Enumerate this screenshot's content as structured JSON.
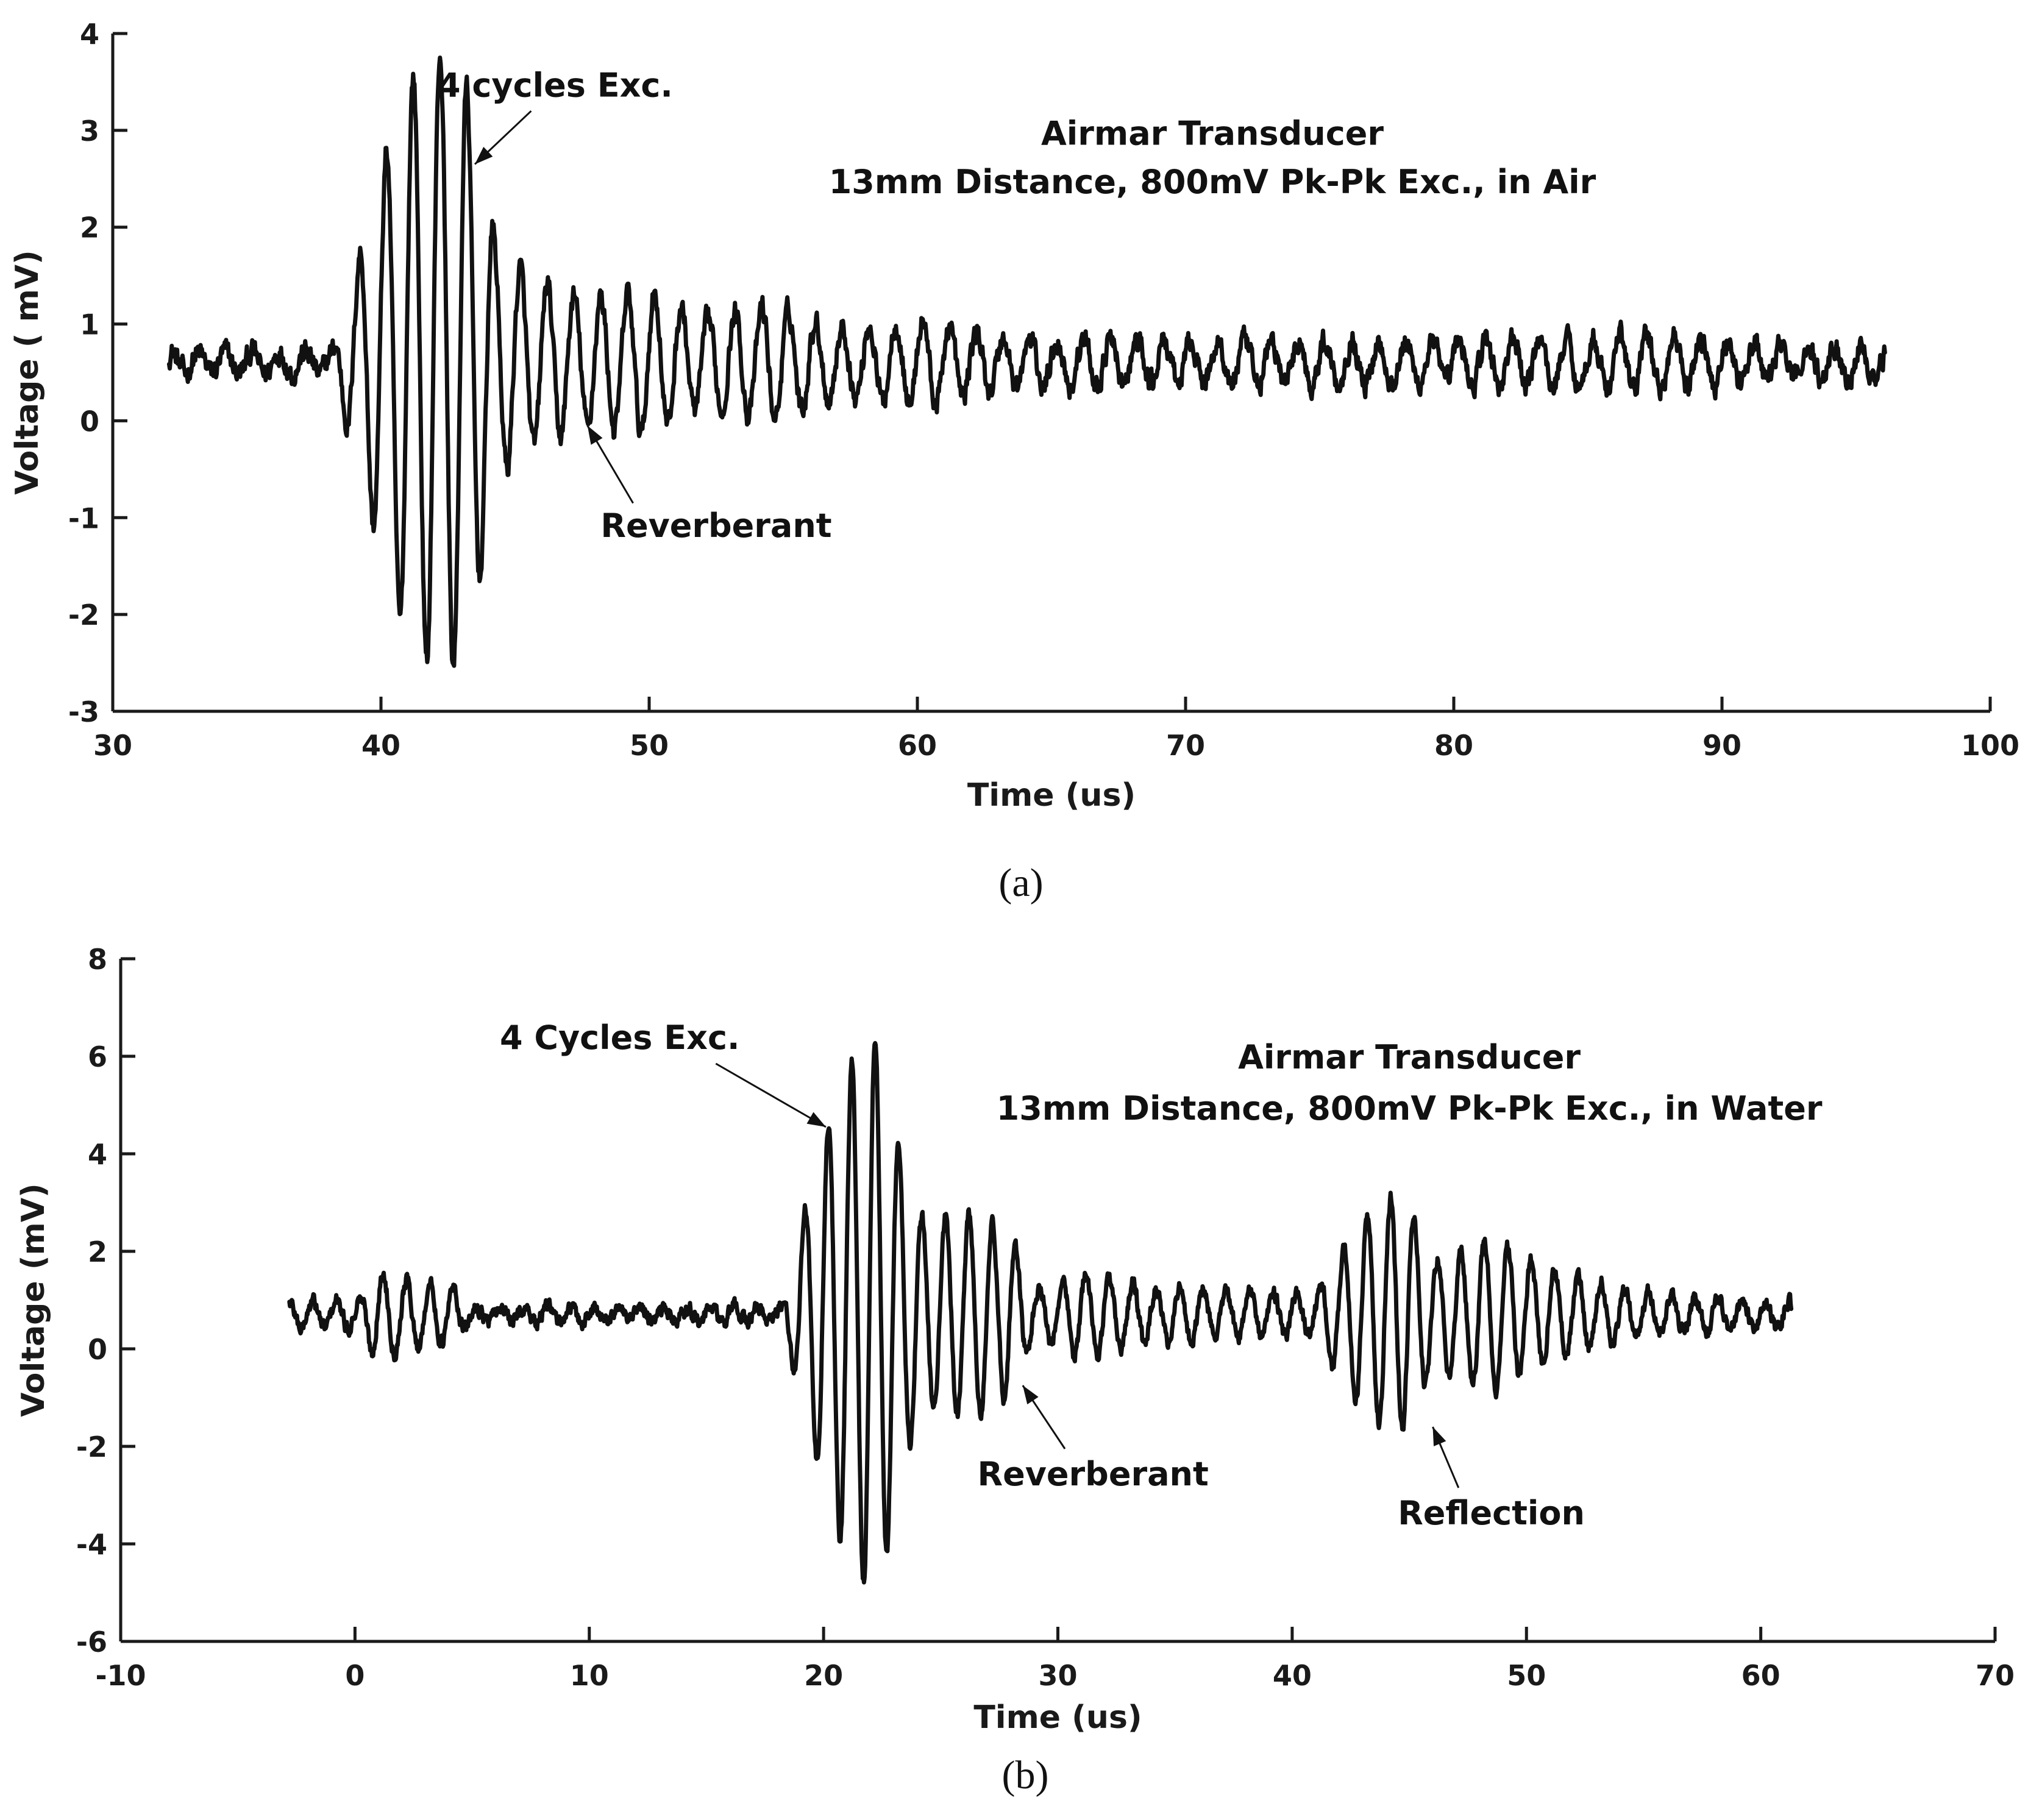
{
  "charts": [
    {
      "panel_label": "(a)",
      "chart_data": {
        "type": "line",
        "title": "",
        "xlabel": "Time (us)",
        "ylabel": "Voltage ( mV)",
        "xlim": [
          30,
          100
        ],
        "ylim": [
          -3,
          4
        ],
        "xticks": [
          30,
          40,
          50,
          60,
          70,
          80,
          90,
          100
        ],
        "yticks": [
          -3,
          -2,
          -1,
          0,
          1,
          2,
          3,
          4
        ],
        "xtick_labels": [
          "30",
          "40",
          "50",
          "60",
          "70",
          "80",
          "90",
          "100"
        ],
        "ytick_labels": [
          "-3",
          "-2",
          "-1",
          "0",
          "1",
          "2",
          "3",
          "4"
        ],
        "grid": false,
        "baseline": 0.6,
        "x_range": [
          32.1,
          96.1
        ],
        "envelope_points": [
          {
            "t": 32.0,
            "a": 0.1
          },
          {
            "t": 38.2,
            "a": 0.12
          },
          {
            "t": 39.0,
            "a": 0.9
          },
          {
            "t": 40.0,
            "a": 2.0
          },
          {
            "t": 41.0,
            "a": 2.9
          },
          {
            "t": 42.0,
            "a": 3.2
          },
          {
            "t": 43.0,
            "a": 3.1
          },
          {
            "t": 43.7,
            "a": 2.2
          },
          {
            "t": 44.3,
            "a": 1.2
          },
          {
            "t": 45.5,
            "a": 0.9
          },
          {
            "t": 47.5,
            "a": 0.65
          },
          {
            "t": 50.0,
            "a": 0.75
          },
          {
            "t": 52.0,
            "a": 0.45
          },
          {
            "t": 54.5,
            "a": 0.6
          },
          {
            "t": 57.0,
            "a": 0.35
          },
          {
            "t": 60.5,
            "a": 0.45
          },
          {
            "t": 63.0,
            "a": 0.25
          },
          {
            "t": 70.0,
            "a": 0.22
          },
          {
            "t": 80.0,
            "a": 0.22
          },
          {
            "t": 87.0,
            "a": 0.28
          },
          {
            "t": 96.5,
            "a": 0.12
          }
        ],
        "carrier_frequency_mhz": 1.0,
        "noise_amplitude": 0.1,
        "annotations": [
          {
            "text": "4 cycles Exc.",
            "x": 46.5,
            "y": 3.35,
            "arrow_to": [
              43.5,
              2.65
            ],
            "arrow_from": [
              45.6,
              3.2
            ]
          },
          {
            "text": "Reverberant",
            "x": 52.5,
            "y": -1.2,
            "arrow_to": [
              47.7,
              -0.05
            ],
            "arrow_from": [
              49.4,
              -0.85
            ]
          }
        ],
        "legend": {
          "lines": [
            "Airmar Transducer",
            "13mm Distance, 800mV Pk-Pk Exc., in Air"
          ],
          "center_x": 71,
          "y": [
            2.85,
            2.35
          ]
        }
      }
    },
    {
      "panel_label": "(b)",
      "chart_data": {
        "type": "line",
        "title": "",
        "xlabel": "Time (us)",
        "ylabel": "Voltage (mV)",
        "xlim": [
          -10,
          70
        ],
        "ylim": [
          -6,
          8
        ],
        "xticks": [
          -10,
          0,
          10,
          20,
          30,
          40,
          50,
          60,
          70
        ],
        "yticks": [
          -6,
          -4,
          -2,
          0,
          2,
          4,
          6,
          8
        ],
        "xtick_labels": [
          "-10",
          "0",
          "10",
          "20",
          "30",
          "40",
          "50",
          "60",
          "70"
        ],
        "ytick_labels": [
          "-6",
          "-4",
          "-2",
          "0",
          "2",
          "4",
          "6",
          "8"
        ],
        "grid": false,
        "baseline": 0.7,
        "x_range": [
          -2.8,
          61.3
        ],
        "envelope_points": [
          {
            "t": -3.0,
            "a": 0.25
          },
          {
            "t": 0.2,
            "a": 0.3
          },
          {
            "t": 0.8,
            "a": 0.85
          },
          {
            "t": 2.5,
            "a": 0.7
          },
          {
            "t": 4.2,
            "a": 0.55
          },
          {
            "t": 5.0,
            "a": 0.15
          },
          {
            "t": 18.3,
            "a": 0.15
          },
          {
            "t": 19.0,
            "a": 1.8
          },
          {
            "t": 20.0,
            "a": 3.6
          },
          {
            "t": 21.0,
            "a": 5.0
          },
          {
            "t": 22.0,
            "a": 5.7
          },
          {
            "t": 22.6,
            "a": 5.2
          },
          {
            "t": 23.3,
            "a": 3.2
          },
          {
            "t": 24.3,
            "a": 1.9
          },
          {
            "t": 26.5,
            "a": 2.1
          },
          {
            "t": 28.0,
            "a": 1.6
          },
          {
            "t": 29.0,
            "a": 0.45
          },
          {
            "t": 31.0,
            "a": 0.9
          },
          {
            "t": 34.0,
            "a": 0.6
          },
          {
            "t": 38.0,
            "a": 0.45
          },
          {
            "t": 41.0,
            "a": 0.4
          },
          {
            "t": 42.5,
            "a": 1.7
          },
          {
            "t": 44.0,
            "a": 2.4
          },
          {
            "t": 45.0,
            "a": 2.3
          },
          {
            "t": 46.0,
            "a": 1.1
          },
          {
            "t": 48.5,
            "a": 1.6
          },
          {
            "t": 50.5,
            "a": 1.0
          },
          {
            "t": 54.0,
            "a": 0.55
          },
          {
            "t": 58.0,
            "a": 0.3
          },
          {
            "t": 61.5,
            "a": 0.25
          }
        ],
        "carrier_frequency_mhz": 1.0,
        "noise_amplitude": 0.12,
        "annotations": [
          {
            "text": "4 Cycles Exc.",
            "x": 11.3,
            "y": 6.15,
            "arrow_to": [
              20.1,
              4.55
            ],
            "arrow_from": [
              15.4,
              5.85
            ]
          },
          {
            "text": "Reverberant",
            "x": 31.5,
            "y": -2.8,
            "arrow_to": [
              28.5,
              -0.75
            ],
            "arrow_from": [
              30.3,
              -2.05
            ]
          },
          {
            "text": "Reflection",
            "x": 48.5,
            "y": -3.6,
            "arrow_to": [
              46.0,
              -1.6
            ],
            "arrow_from": [
              47.1,
              -2.85
            ]
          }
        ],
        "legend": {
          "lines": [
            "Airmar Transducer",
            "13mm Distance, 800mV Pk-Pk Exc., in Water"
          ],
          "center_x": 45,
          "y": [
            5.75,
            4.7
          ]
        }
      }
    }
  ]
}
